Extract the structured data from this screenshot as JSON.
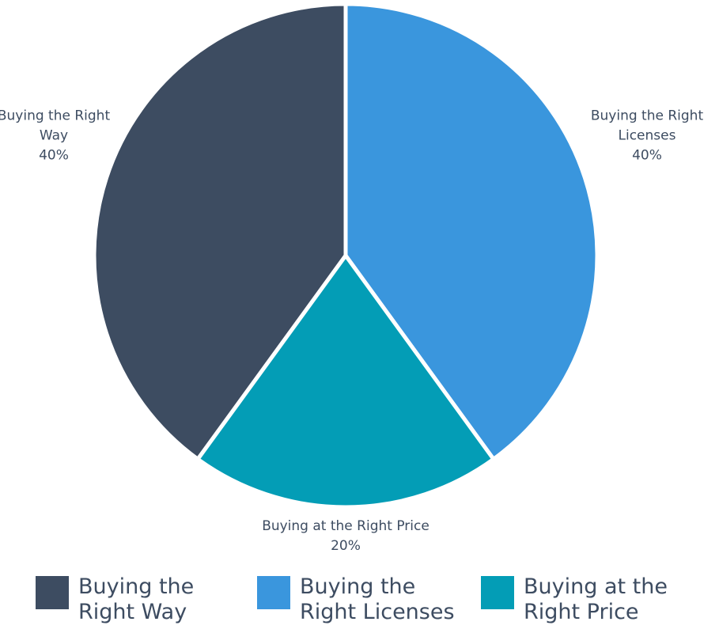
{
  "chart_data": {
    "type": "pie",
    "categories": [
      "Buying the Right Way",
      "Buying the Right Licenses",
      "Buying at the Right Price"
    ],
    "values": [
      40,
      40,
      20
    ],
    "value_labels": [
      "40%",
      "40%",
      "20%"
    ],
    "colors": [
      "#3d4c61",
      "#3a96dd",
      "#039db6"
    ],
    "legend": "bottom"
  }
}
